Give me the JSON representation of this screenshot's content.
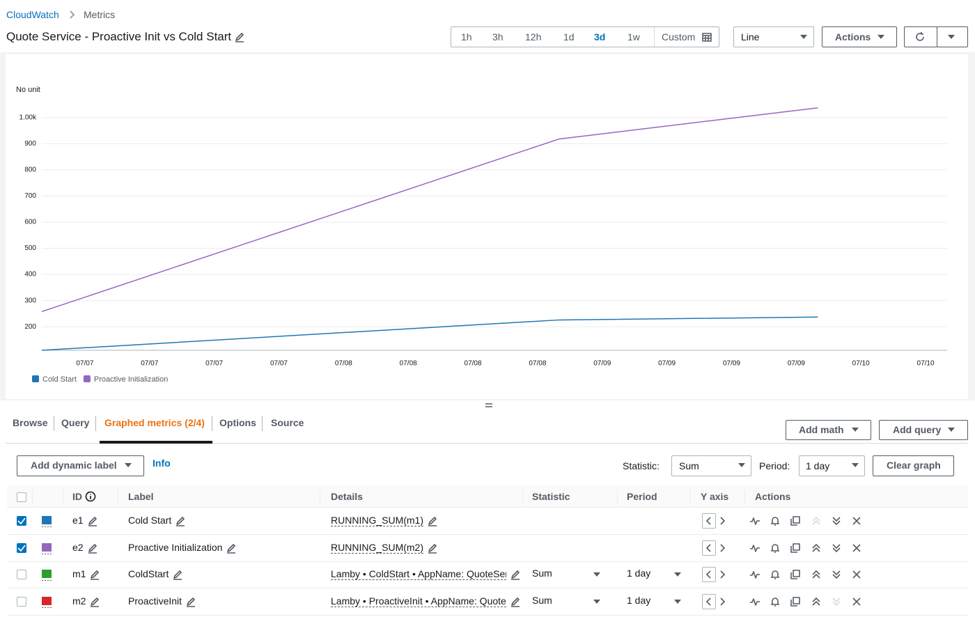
{
  "breadcrumb": [
    "CloudWatch",
    "Metrics"
  ],
  "title": "Quote Service - Proactive Init vs Cold Start",
  "time_ranges": [
    {
      "label": "1h"
    },
    {
      "label": "3h"
    },
    {
      "label": "12h"
    },
    {
      "label": "1d"
    },
    {
      "label": "3d",
      "selected": true
    },
    {
      "label": "1w"
    },
    {
      "label": "Custom"
    }
  ],
  "view_select": "Line",
  "actions_button": "Actions",
  "chart_data": {
    "type": "line",
    "ylabel": "No unit",
    "x": [
      -4,
      44,
      68
    ],
    "xlim": [
      -4,
      80
    ],
    "xticks": [
      {
        "value": 0,
        "label": "07/07"
      },
      {
        "value": 6,
        "label": "07/07"
      },
      {
        "value": 12,
        "label": "07/07"
      },
      {
        "value": 18,
        "label": "07/07"
      },
      {
        "value": 24,
        "label": "07/08"
      },
      {
        "value": 30,
        "label": "07/08"
      },
      {
        "value": 36,
        "label": "07/08"
      },
      {
        "value": 42,
        "label": "07/08"
      },
      {
        "value": 48,
        "label": "07/09"
      },
      {
        "value": 54,
        "label": "07/09"
      },
      {
        "value": 60,
        "label": "07/09"
      },
      {
        "value": 66,
        "label": "07/09"
      },
      {
        "value": 72,
        "label": "07/10"
      },
      {
        "value": 78,
        "label": "07/10"
      }
    ],
    "ylim": [
      110,
      1050
    ],
    "yticks": [
      200,
      300,
      400,
      500,
      600,
      700,
      800,
      900,
      {
        "value": 1000,
        "label": "1.00k"
      }
    ],
    "grid": true,
    "legend": "bottom-left",
    "series": [
      {
        "name": "Cold Start",
        "color": "#1f77b4",
        "values": [
          110,
          226,
          237
        ]
      },
      {
        "name": "Proactive Initialization",
        "color": "#9467bd",
        "values": [
          258,
          918,
          1037
        ]
      }
    ]
  },
  "tabs": [
    {
      "label": "Browse"
    },
    {
      "label": "Query"
    },
    {
      "label": "Graphed metrics (2/4)",
      "selected": true
    },
    {
      "label": "Options"
    },
    {
      "label": "Source"
    }
  ],
  "add_math": "Add math",
  "add_query": "Add query",
  "toolbar": {
    "dynamic_label": "Add dynamic label",
    "info": "Info",
    "statistic_label": "Statistic:",
    "statistic": "Sum",
    "period_label": "Period:",
    "period": "1 day",
    "clear": "Clear graph"
  },
  "table": {
    "headers": [
      "ID",
      "Label",
      "Details",
      "Statistic",
      "Period",
      "Y axis",
      "Actions"
    ],
    "rows": [
      {
        "id": "e1",
        "label": "Cold Start",
        "details": "RUNNING_SUM(m1)",
        "color": "#1f77b4",
        "checked": true
      },
      {
        "id": "e2",
        "label": "Proactive Initialization",
        "details": "RUNNING_SUM(m2)",
        "color": "#9467bd",
        "checked": true
      },
      {
        "id": "m1",
        "label": "ColdStart",
        "details": "Lamby • ColdStart • AppName: QuoteSer",
        "color": "#2ca02c",
        "checked": false,
        "statistic": "Sum",
        "period": "1 day"
      },
      {
        "id": "m2",
        "label": "ProactiveInit",
        "details": "Lamby • ProactiveInit • AppName: Quote!",
        "color": "#d62728",
        "checked": false,
        "statistic": "Sum",
        "period": "1 day"
      }
    ]
  }
}
